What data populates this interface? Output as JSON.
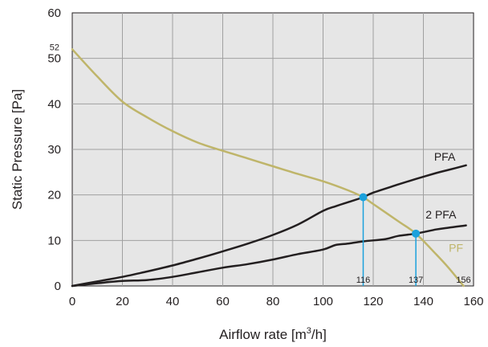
{
  "chart_data": {
    "type": "line",
    "xlabel": {
      "text": "Airflow rate [m",
      "sup": "3",
      "tail": "/h]"
    },
    "ylabel": "Static Pressure [Pa]",
    "xlim": [
      0,
      160
    ],
    "ylim": [
      0,
      60
    ],
    "xticks": [
      0,
      20,
      40,
      60,
      80,
      100,
      120,
      140,
      160
    ],
    "yticks": [
      0,
      10,
      20,
      30,
      40,
      50,
      60
    ],
    "grid": true,
    "plot_background": "#e6e6e6",
    "series": [
      {
        "name": "PF",
        "color": "#bfb56a",
        "points": [
          [
            0,
            52
          ],
          [
            10,
            46
          ],
          [
            20,
            40.5
          ],
          [
            30,
            37
          ],
          [
            40,
            34
          ],
          [
            50,
            31.5
          ],
          [
            60,
            29.7
          ],
          [
            70,
            28
          ],
          [
            80,
            26.3
          ],
          [
            90,
            24.6
          ],
          [
            100,
            23
          ],
          [
            110,
            21
          ],
          [
            116,
            19.5
          ],
          [
            120,
            18
          ],
          [
            130,
            14.2
          ],
          [
            137,
            11.5
          ],
          [
            145,
            7
          ],
          [
            150,
            4
          ],
          [
            156,
            0
          ]
        ]
      },
      {
        "name": "PFA",
        "color": "#231f20",
        "points": [
          [
            0,
            0
          ],
          [
            10,
            1
          ],
          [
            20,
            2
          ],
          [
            30,
            3.2
          ],
          [
            40,
            4.5
          ],
          [
            50,
            6
          ],
          [
            60,
            7.6
          ],
          [
            70,
            9.3
          ],
          [
            80,
            11.2
          ],
          [
            90,
            13.5
          ],
          [
            100,
            16.5
          ],
          [
            105,
            17.5
          ],
          [
            110,
            18.4
          ],
          [
            116,
            19.5
          ],
          [
            120,
            20.5
          ],
          [
            130,
            22.3
          ],
          [
            137,
            23.5
          ],
          [
            145,
            24.8
          ],
          [
            150,
            25.5
          ],
          [
            157,
            26.5
          ]
        ]
      },
      {
        "name": "2 PFA",
        "color": "#231f20",
        "points": [
          [
            0,
            0
          ],
          [
            10,
            0.6
          ],
          [
            20,
            1.1
          ],
          [
            30,
            1.3
          ],
          [
            40,
            2
          ],
          [
            50,
            3
          ],
          [
            60,
            4
          ],
          [
            70,
            4.8
          ],
          [
            80,
            5.8
          ],
          [
            90,
            7
          ],
          [
            100,
            8
          ],
          [
            105,
            9
          ],
          [
            110,
            9.3
          ],
          [
            116,
            9.8
          ],
          [
            125,
            10.3
          ],
          [
            130,
            11
          ],
          [
            137,
            11.5
          ],
          [
            145,
            12.4
          ],
          [
            150,
            12.8
          ],
          [
            157,
            13.3
          ]
        ]
      }
    ],
    "operating_points": [
      {
        "x": 116,
        "y": 19.5,
        "label": "116"
      },
      {
        "x": 137,
        "y": 11.5,
        "label": "137"
      }
    ],
    "annotations": [
      {
        "text": "52",
        "x": 0,
        "y": 52,
        "kind": "y-intercept"
      },
      {
        "text": "156",
        "x": 156,
        "y": 0,
        "kind": "x-intercept"
      }
    ],
    "point_color": "#1ba1dc"
  }
}
